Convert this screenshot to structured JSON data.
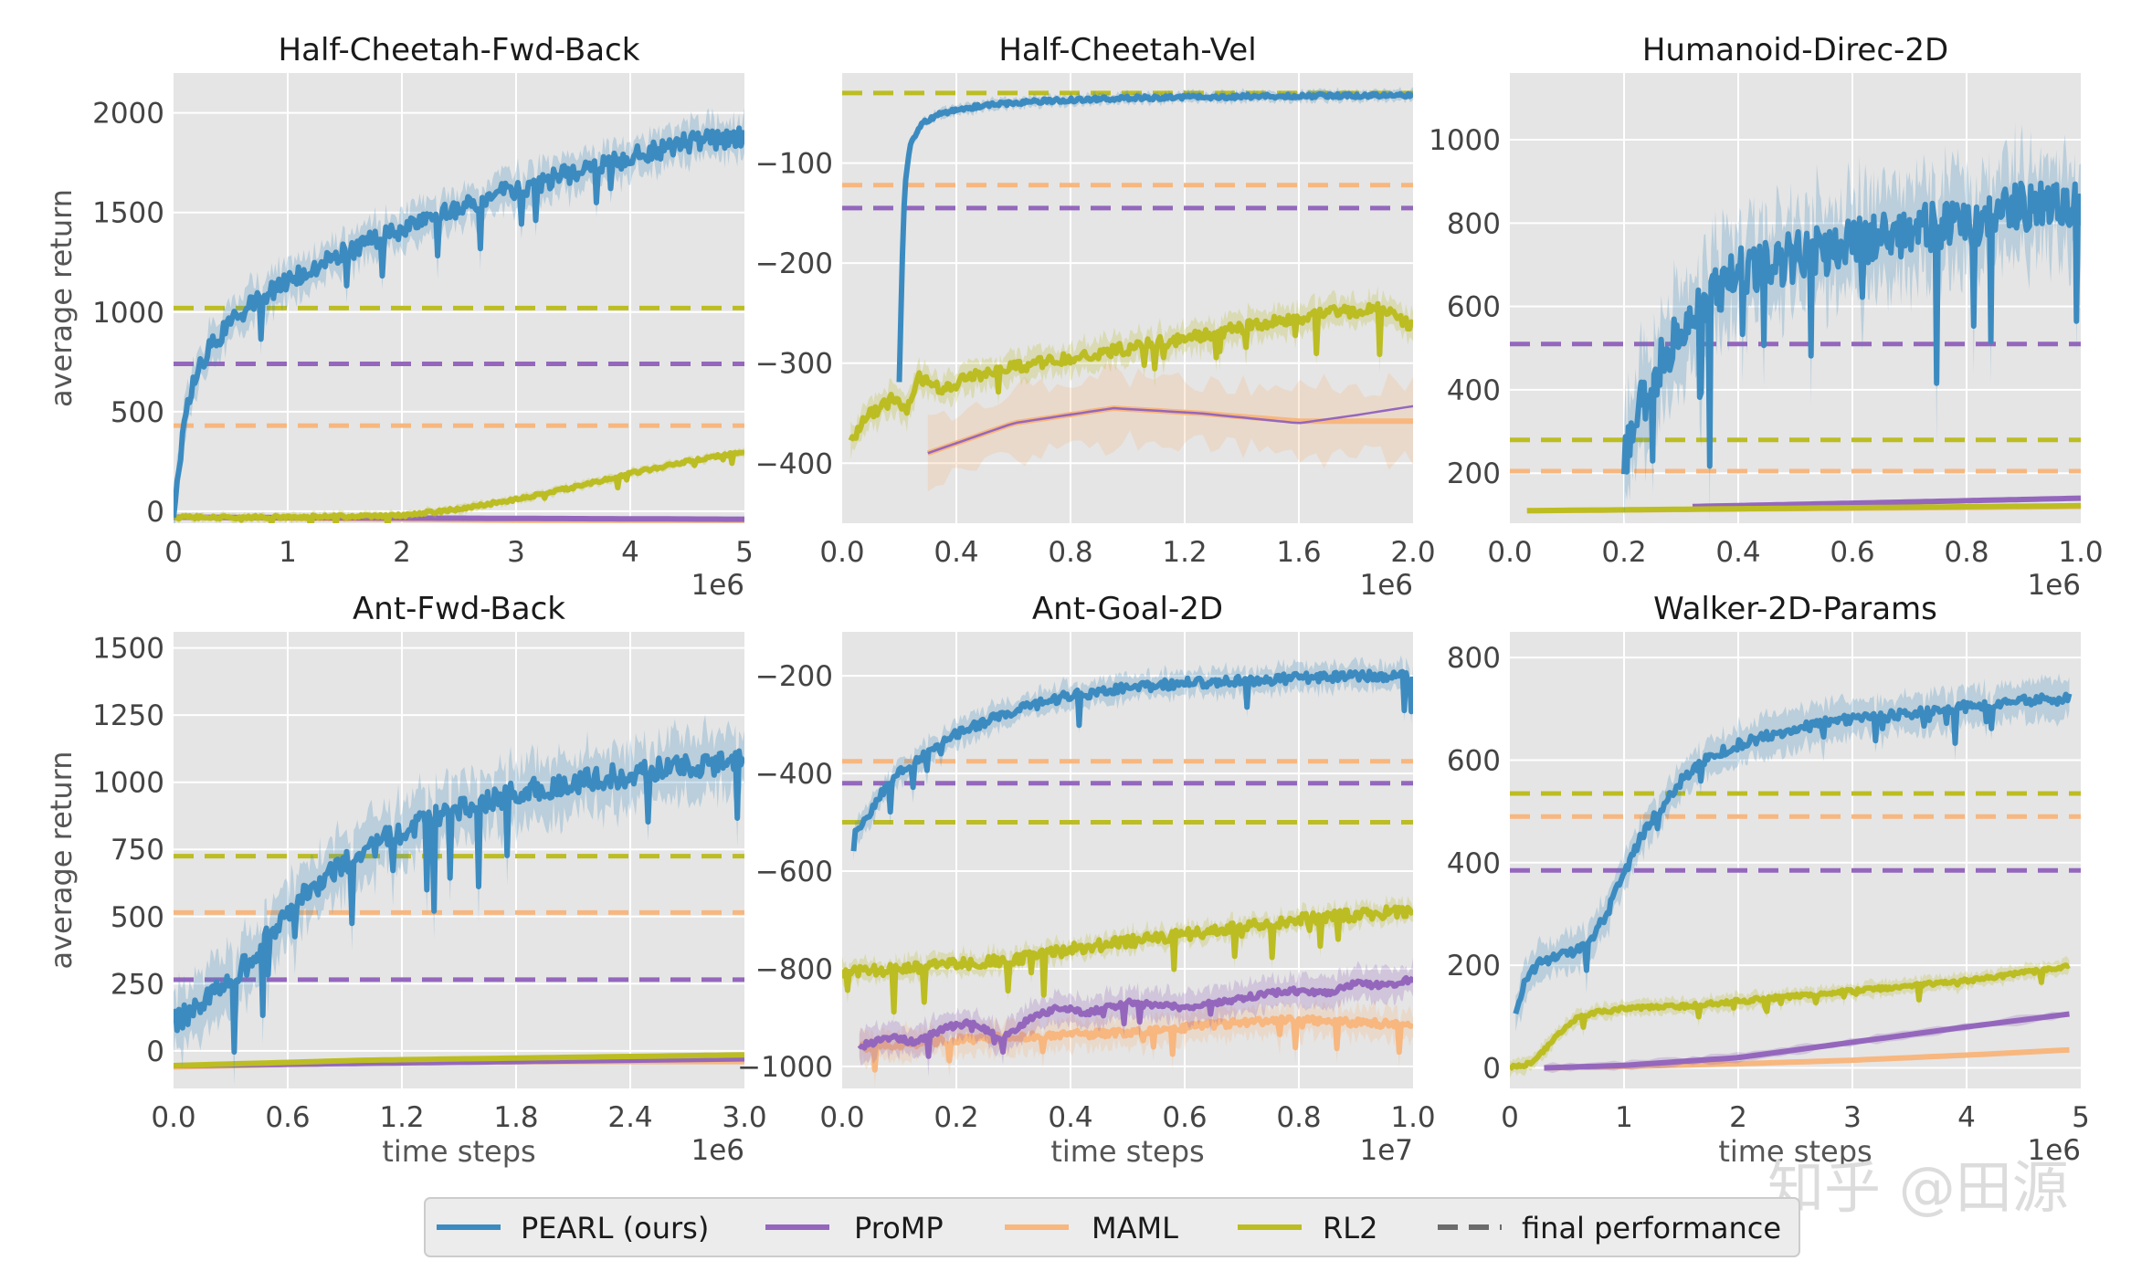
{
  "legend": {
    "items": [
      {
        "label": "PEARL (ours)",
        "color": "#3c8bc0",
        "style": "solid"
      },
      {
        "label": "ProMP",
        "color": "#9467bd",
        "style": "solid"
      },
      {
        "label": "MAML",
        "color": "#f7b77f",
        "style": "solid"
      },
      {
        "label": "RL2",
        "color": "#bcbd22",
        "style": "solid"
      },
      {
        "label": "final performance",
        "color": "#6b6b6b",
        "style": "dashed"
      }
    ]
  },
  "watermark": "知乎 @田源",
  "chart_data": [
    {
      "type": "line",
      "title": "Half-Cheetah-Fwd-Back",
      "xlabel": "",
      "ylabel": "average return",
      "x_multiplier": "1e6",
      "xlim": [
        0,
        5
      ],
      "ylim": [
        -60,
        2200
      ],
      "xticks": [
        0,
        1,
        2,
        3,
        4,
        5
      ],
      "xtick_labels": [
        "0",
        "1",
        "2",
        "3",
        "4",
        "5"
      ],
      "yticks": [
        0,
        500,
        1000,
        1500,
        2000
      ],
      "ytick_labels": [
        "0",
        "500",
        "1000",
        "1500",
        "2000"
      ],
      "grid": true,
      "series": [
        {
          "name": "PEARL (ours)",
          "x": [
            0,
            0.1,
            0.2,
            0.3,
            0.5,
            0.7,
            1.0,
            1.5,
            2.0,
            2.5,
            3.0,
            3.5,
            4.0,
            4.5,
            5.0
          ],
          "y": [
            -20,
            450,
            700,
            800,
            950,
            1050,
            1150,
            1300,
            1420,
            1530,
            1620,
            1700,
            1780,
            1850,
            1880
          ],
          "noise": 50,
          "band": 90
        },
        {
          "name": "ProMP",
          "x": [
            0,
            5
          ],
          "y": [
            -30,
            -40
          ]
        },
        {
          "name": "MAML",
          "x": [
            0,
            1,
            2,
            3,
            4,
            5
          ],
          "y": [
            -30,
            -35,
            -40,
            -45,
            -45,
            -45
          ]
        },
        {
          "name": "RL2",
          "x": [
            0,
            1,
            2,
            2.5,
            3,
            3.5,
            4,
            4.5,
            5
          ],
          "y": [
            -30,
            -30,
            -20,
            10,
            60,
            120,
            190,
            250,
            300
          ],
          "noise": 8,
          "band": 20
        }
      ],
      "final_performance": [
        {
          "name": "RL2",
          "y": 1020
        },
        {
          "name": "ProMP",
          "y": 740
        },
        {
          "name": "MAML",
          "y": 430
        }
      ]
    },
    {
      "type": "line",
      "title": "Half-Cheetah-Vel",
      "xlabel": "",
      "ylabel": "",
      "x_multiplier": "1e6",
      "xlim": [
        0,
        2.0
      ],
      "ylim": [
        -460,
        -10
      ],
      "xticks": [
        0,
        0.4,
        0.8,
        1.2,
        1.6,
        2.0
      ],
      "xtick_labels": [
        "0.0",
        "0.4",
        "0.8",
        "1.2",
        "1.6",
        "2.0"
      ],
      "yticks": [
        -400,
        -300,
        -200,
        -100
      ],
      "ytick_labels": [
        "−400",
        "−300",
        "−200",
        "−100"
      ],
      "grid": true,
      "series": [
        {
          "name": "PEARL (ours)",
          "x": [
            0.2,
            0.21,
            0.22,
            0.24,
            0.28,
            0.35,
            0.5,
            0.7,
            1.0,
            1.5,
            2.0
          ],
          "y": [
            -320,
            -200,
            -120,
            -80,
            -60,
            -50,
            -42,
            -38,
            -35,
            -33,
            -32
          ],
          "noise": 2,
          "band": 5
        },
        {
          "name": "ProMP",
          "x": [
            0.3,
            0.6,
            0.95,
            1.25,
            1.6,
            1.8,
            2.0
          ],
          "y": [
            -390,
            -360,
            -345,
            -350,
            -360,
            -352,
            -343
          ]
        },
        {
          "name": "MAML",
          "x": [
            0.3,
            0.6,
            0.95,
            1.25,
            1.6,
            1.8,
            2.0
          ],
          "y": [
            -390,
            -360,
            -345,
            -350,
            -358,
            -358,
            -358
          ],
          "band": 35
        },
        {
          "name": "RL2",
          "x": [
            0.03,
            0.08,
            0.13,
            0.18,
            0.22,
            0.27,
            0.35,
            0.5,
            0.7,
            0.9,
            1.1,
            1.3,
            1.5,
            1.7,
            1.9,
            2.0
          ],
          "y": [
            -380,
            -355,
            -345,
            -335,
            -350,
            -315,
            -325,
            -310,
            -300,
            -290,
            -280,
            -270,
            -260,
            -250,
            -245,
            -265
          ],
          "noise": 6,
          "band": 14
        }
      ],
      "final_performance": [
        {
          "name": "RL2",
          "y": -30
        },
        {
          "name": "MAML",
          "y": -122
        },
        {
          "name": "ProMP",
          "y": -145
        }
      ]
    },
    {
      "type": "line",
      "title": "Humanoid-Direc-2D",
      "xlabel": "",
      "ylabel": "",
      "x_multiplier": "1e6",
      "xlim": [
        0,
        1.0
      ],
      "ylim": [
        80,
        1160
      ],
      "xticks": [
        0,
        0.2,
        0.4,
        0.6,
        0.8,
        1.0
      ],
      "xtick_labels": [
        "0.0",
        "0.2",
        "0.4",
        "0.6",
        "0.8",
        "1.0"
      ],
      "yticks": [
        200,
        400,
        600,
        800,
        1000
      ],
      "ytick_labels": [
        "200",
        "400",
        "600",
        "800",
        "1000"
      ],
      "grid": true,
      "series": [
        {
          "name": "PEARL (ours)",
          "x": [
            0.2,
            0.22,
            0.25,
            0.3,
            0.35,
            0.4,
            0.5,
            0.6,
            0.7,
            0.8,
            0.9,
            1.0
          ],
          "y": [
            240,
            330,
            420,
            560,
            620,
            680,
            720,
            750,
            780,
            800,
            840,
            850
          ],
          "noise": 60,
          "band": 110
        },
        {
          "name": "ProMP",
          "x": [
            0.32,
            0.6,
            1.0
          ],
          "y": [
            120,
            128,
            140
          ]
        },
        {
          "name": "MAML",
          "x": [
            0.03,
            0.5,
            1.0
          ],
          "y": [
            110,
            115,
            120
          ]
        },
        {
          "name": "RL2",
          "x": [
            0.03,
            0.5,
            1.0
          ],
          "y": [
            110,
            116,
            122
          ]
        }
      ],
      "final_performance": [
        {
          "name": "ProMP",
          "y": 510
        },
        {
          "name": "RL2",
          "y": 280
        },
        {
          "name": "MAML",
          "y": 205
        }
      ]
    },
    {
      "type": "line",
      "title": "Ant-Fwd-Back",
      "xlabel": "time steps",
      "ylabel": "average return",
      "x_multiplier": "1e6",
      "xlim": [
        0,
        3.0
      ],
      "ylim": [
        -140,
        1560
      ],
      "xticks": [
        0,
        0.6,
        1.2,
        1.8,
        2.4,
        3.0
      ],
      "xtick_labels": [
        "0.0",
        "0.6",
        "1.2",
        "1.8",
        "2.4",
        "3.0"
      ],
      "yticks": [
        0,
        250,
        500,
        750,
        1000,
        1250,
        1500
      ],
      "ytick_labels": [
        "0",
        "250",
        "500",
        "750",
        "1000",
        "1250",
        "1500"
      ],
      "grid": true,
      "series": [
        {
          "name": "PEARL (ours)",
          "x": [
            0,
            0.2,
            0.4,
            0.6,
            0.8,
            1.0,
            1.2,
            1.5,
            1.8,
            2.1,
            2.4,
            2.7,
            3.0
          ],
          "y": [
            100,
            200,
            330,
            520,
            650,
            740,
            820,
            900,
            960,
            1000,
            1030,
            1060,
            1080
          ],
          "noise": 45,
          "band": 110
        },
        {
          "name": "ProMP",
          "x": [
            0,
            3.0
          ],
          "y": [
            -55,
            -30
          ]
        },
        {
          "name": "MAML",
          "x": [
            0,
            1.0,
            2.0,
            3.0
          ],
          "y": [
            -60,
            -45,
            -40,
            -40
          ]
        },
        {
          "name": "RL2",
          "x": [
            0,
            1.0,
            2.0,
            3.0
          ],
          "y": [
            -55,
            -35,
            -25,
            -15
          ]
        }
      ],
      "final_performance": [
        {
          "name": "RL2",
          "y": 725
        },
        {
          "name": "MAML",
          "y": 515
        },
        {
          "name": "ProMP",
          "y": 265
        }
      ]
    },
    {
      "type": "line",
      "title": "Ant-Goal-2D",
      "xlabel": "time steps",
      "ylabel": "",
      "x_multiplier": "1e7",
      "xlim": [
        0,
        1.0
      ],
      "ylim": [
        -1045,
        -110
      ],
      "xticks": [
        0,
        0.2,
        0.4,
        0.6,
        0.8,
        1.0
      ],
      "xtick_labels": [
        "0.0",
        "0.2",
        "0.4",
        "0.6",
        "0.8",
        "1.0"
      ],
      "yticks": [
        -1000,
        -800,
        -600,
        -400,
        -200
      ],
      "ytick_labels": [
        "−1000",
        "−800",
        "−600",
        "−400",
        "−200"
      ],
      "grid": true,
      "series": [
        {
          "name": "PEARL (ours)",
          "x": [
            0.02,
            0.04,
            0.07,
            0.1,
            0.15,
            0.2,
            0.3,
            0.4,
            0.5,
            0.6,
            0.7,
            0.8,
            0.9,
            1.0
          ],
          "y": [
            -520,
            -500,
            -440,
            -400,
            -360,
            -320,
            -270,
            -240,
            -225,
            -215,
            -210,
            -205,
            -200,
            -200
          ],
          "noise": 10,
          "band": 25
        },
        {
          "name": "ProMP",
          "x": [
            0.03,
            0.08,
            0.13,
            0.18,
            0.23,
            0.28,
            0.33,
            0.38,
            0.43,
            0.5,
            0.6,
            0.7,
            0.78,
            0.85,
            0.9,
            0.95,
            1.0
          ],
          "y": [
            -960,
            -940,
            -950,
            -920,
            -910,
            -945,
            -900,
            -880,
            -890,
            -870,
            -880,
            -860,
            -845,
            -850,
            -830,
            -835,
            -820
          ],
          "noise": 6,
          "band": 30
        },
        {
          "name": "MAML",
          "x": [
            0.03,
            0.1,
            0.2,
            0.3,
            0.4,
            0.5,
            0.6,
            0.7,
            0.8,
            0.9,
            1.0
          ],
          "y": [
            -960,
            -955,
            -945,
            -940,
            -935,
            -930,
            -920,
            -910,
            -905,
            -910,
            -915
          ],
          "noise": 8,
          "band": 30
        },
        {
          "name": "RL2",
          "x": [
            0,
            0.1,
            0.2,
            0.3,
            0.4,
            0.5,
            0.6,
            0.7,
            0.8,
            0.9,
            1.0
          ],
          "y": [
            -810,
            -800,
            -790,
            -780,
            -760,
            -745,
            -730,
            -715,
            -700,
            -690,
            -680
          ],
          "noise": 12,
          "band": 20
        }
      ],
      "final_performance": [
        {
          "name": "MAML",
          "y": -375
        },
        {
          "name": "ProMP",
          "y": -420
        },
        {
          "name": "RL2",
          "y": -500
        }
      ]
    },
    {
      "type": "line",
      "title": "Walker-2D-Params",
      "xlabel": "time steps",
      "ylabel": "",
      "x_multiplier": "1e6",
      "xlim": [
        0,
        5
      ],
      "ylim": [
        -40,
        850
      ],
      "xticks": [
        0,
        1,
        2,
        3,
        4,
        5
      ],
      "xtick_labels": [
        "0",
        "1",
        "2",
        "3",
        "4",
        "5"
      ],
      "yticks": [
        0,
        200,
        400,
        600,
        800
      ],
      "ytick_labels": [
        "0",
        "200",
        "400",
        "600",
        "800"
      ],
      "grid": true,
      "series": [
        {
          "name": "PEARL (ours)",
          "x": [
            0.05,
            0.15,
            0.3,
            0.5,
            0.7,
            0.85,
            1.0,
            1.15,
            1.3,
            1.5,
            1.7,
            2.0,
            2.3,
            2.7,
            3.0,
            3.5,
            4.0,
            4.5,
            4.9
          ],
          "y": [
            110,
            180,
            210,
            220,
            250,
            300,
            380,
            450,
            500,
            560,
            600,
            630,
            650,
            670,
            680,
            690,
            705,
            715,
            720
          ],
          "noise": 10,
          "band": 35
        },
        {
          "name": "ProMP",
          "x": [
            0.3,
            1.0,
            2.0,
            3.0,
            4.0,
            4.9
          ],
          "y": [
            0,
            5,
            20,
            50,
            80,
            105
          ],
          "band": 8
        },
        {
          "name": "MAML",
          "x": [
            0.3,
            1.0,
            2.0,
            3.0,
            4.0,
            4.9
          ],
          "y": [
            0,
            3,
            8,
            15,
            25,
            35
          ]
        },
        {
          "name": "RL2",
          "x": [
            0,
            0.2,
            0.4,
            0.6,
            0.8,
            1.0,
            1.5,
            2.0,
            2.5,
            3.0,
            3.5,
            4.0,
            4.5,
            4.9
          ],
          "y": [
            0,
            10,
            60,
            100,
            110,
            115,
            120,
            130,
            140,
            150,
            160,
            170,
            185,
            200
          ],
          "noise": 4,
          "band": 14
        }
      ],
      "final_performance": [
        {
          "name": "RL2",
          "y": 535
        },
        {
          "name": "MAML",
          "y": 490
        },
        {
          "name": "ProMP",
          "y": 385
        }
      ]
    }
  ]
}
